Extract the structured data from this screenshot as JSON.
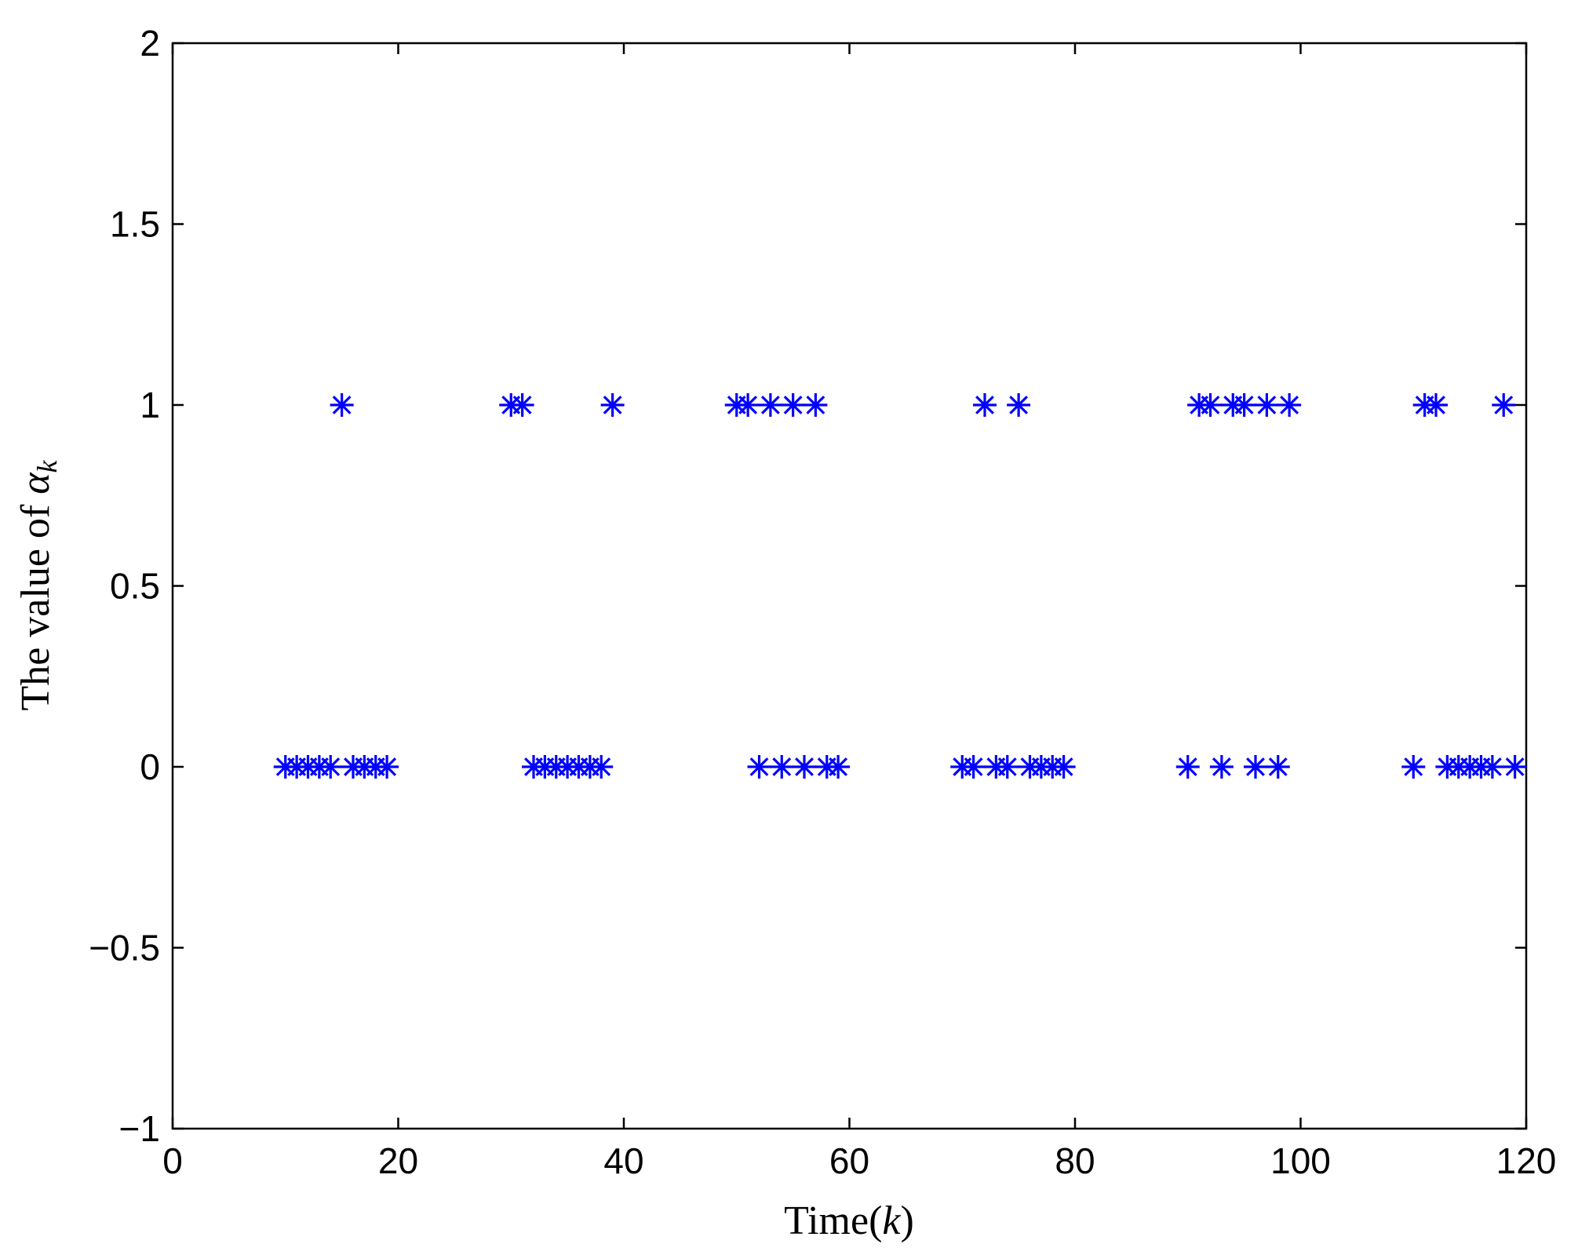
{
  "chart_data": {
    "type": "scatter",
    "title": "",
    "xlabel": {
      "prefix": "Time(",
      "var": "k",
      "suffix": ")"
    },
    "ylabel": {
      "prefix": "The value of ",
      "var": "α",
      "subscript": "k"
    },
    "xlim": [
      0,
      120
    ],
    "ylim": [
      -1,
      2
    ],
    "xticks": [
      0,
      20,
      40,
      60,
      80,
      100,
      120
    ],
    "yticks": [
      -1,
      -0.5,
      0,
      0.5,
      1,
      1.5,
      2
    ],
    "xtick_labels": [
      "0",
      "20",
      "40",
      "60",
      "80",
      "100",
      "120"
    ],
    "ytick_labels": [
      "−1",
      "−0.5",
      "0",
      "0.5",
      "1",
      "1.5",
      "2"
    ],
    "marker": "asterisk",
    "grid": false,
    "color": "#0000ff",
    "x": [
      10,
      11,
      12,
      13,
      14,
      15,
      16,
      17,
      18,
      19,
      30,
      31,
      32,
      33,
      34,
      35,
      36,
      37,
      38,
      39,
      50,
      51,
      52,
      53,
      54,
      55,
      56,
      57,
      58,
      59,
      70,
      71,
      72,
      73,
      74,
      75,
      76,
      77,
      78,
      79,
      90,
      91,
      92,
      93,
      94,
      95,
      96,
      97,
      98,
      99,
      110,
      111,
      112,
      113,
      114,
      115,
      116,
      117,
      118,
      119
    ],
    "y": [
      0,
      0,
      0,
      0,
      0,
      1,
      0,
      0,
      0,
      0,
      1,
      1,
      0,
      0,
      0,
      0,
      0,
      0,
      0,
      1,
      1,
      1,
      0,
      1,
      0,
      1,
      0,
      1,
      0,
      0,
      0,
      0,
      1,
      0,
      0,
      1,
      0,
      0,
      0,
      0,
      0,
      1,
      1,
      0,
      1,
      1,
      0,
      1,
      0,
      1,
      0,
      1,
      1,
      0,
      0,
      0,
      0,
      0,
      1,
      0
    ]
  }
}
